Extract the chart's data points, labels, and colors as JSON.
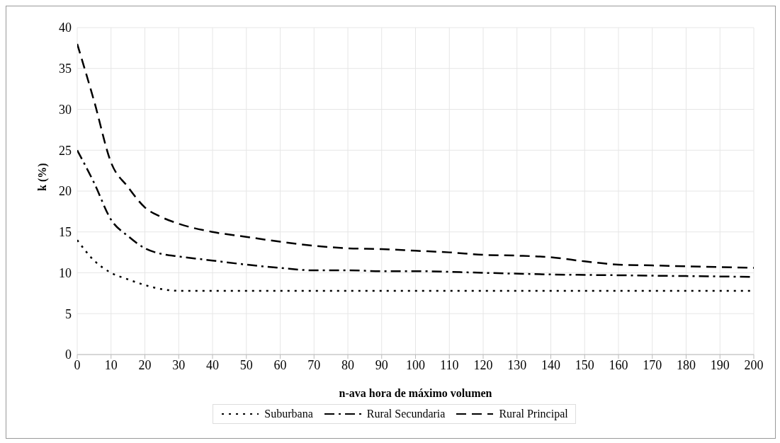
{
  "chart_data": {
    "type": "line",
    "xlabel": "n-ava hora de máximo volumen",
    "ylabel": "k (%)",
    "xlim": [
      0,
      200
    ],
    "xticks": [
      0,
      10,
      20,
      30,
      40,
      50,
      60,
      70,
      80,
      90,
      100,
      110,
      120,
      130,
      140,
      150,
      160,
      170,
      180,
      190,
      200
    ],
    "ylim": [
      0,
      40
    ],
    "yticks": [
      0,
      5,
      10,
      15,
      20,
      25,
      30,
      35,
      40
    ],
    "grid": true,
    "legend": "bottom",
    "marker": "none",
    "series": [
      {
        "name": "Suburbana",
        "color": "#000000",
        "line_style": "dotted",
        "x": [
          0,
          5,
          10,
          15,
          20,
          25,
          30,
          40,
          60,
          80,
          100,
          120,
          140,
          160,
          180,
          200
        ],
        "values": [
          14,
          11.5,
          10,
          9.2,
          8.5,
          8,
          7.8,
          7.8,
          7.8,
          7.8,
          7.8,
          7.8,
          7.8,
          7.8,
          7.8,
          7.8
        ]
      },
      {
        "name": "Rural Secundaria",
        "color": "#000000",
        "line_style": "dashdot",
        "x": [
          0,
          5,
          10,
          15,
          20,
          25,
          30,
          40,
          50,
          60,
          70,
          80,
          90,
          100,
          120,
          140,
          160,
          180,
          200
        ],
        "values": [
          25,
          21,
          16.5,
          14.5,
          13,
          12.3,
          12,
          11.5,
          11,
          10.6,
          10.3,
          10.3,
          10.2,
          10.2,
          10,
          9.8,
          9.7,
          9.6,
          9.5
        ]
      },
      {
        "name": "Rural Principal",
        "color": "#000000",
        "line_style": "dashed",
        "x": [
          0,
          5,
          10,
          15,
          20,
          25,
          30,
          40,
          50,
          60,
          70,
          80,
          90,
          100,
          110,
          120,
          130,
          140,
          150,
          160,
          170,
          180,
          190,
          200
        ],
        "values": [
          38,
          31,
          23.5,
          20.5,
          18,
          16.8,
          16,
          15,
          14.4,
          13.8,
          13.3,
          13,
          12.9,
          12.7,
          12.5,
          12.2,
          12.1,
          11.9,
          11.4,
          11,
          10.9,
          10.8,
          10.7,
          10.6
        ]
      }
    ]
  }
}
